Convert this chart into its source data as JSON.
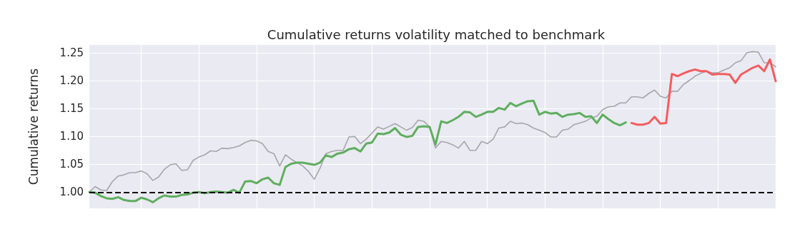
{
  "chart_data": {
    "type": "line",
    "title": "Cumulative returns volatility matched to benchmark",
    "ylabel": "Cumulative returns",
    "categories": [
      null,
      null,
      null,
      null,
      null,
      null,
      null,
      null,
      null,
      null,
      null,
      null,
      null,
      null,
      null,
      null,
      null,
      null,
      null,
      null,
      null,
      null,
      null,
      null,
      null,
      null,
      null,
      null,
      null,
      null,
      null,
      null,
      null,
      null,
      null,
      null,
      null,
      null,
      null,
      null,
      null,
      null,
      null,
      null,
      null,
      null,
      null,
      null,
      null,
      null,
      null,
      null,
      null,
      null,
      null,
      null,
      null,
      null,
      null,
      null,
      null,
      null,
      null,
      null,
      null,
      null,
      null,
      null,
      null,
      null,
      null,
      null,
      null,
      null,
      null,
      null,
      null,
      null,
      null,
      null,
      null,
      null,
      null,
      null,
      null,
      null,
      null,
      null,
      null,
      null,
      null,
      null,
      null,
      null,
      null,
      null,
      null,
      null,
      null,
      null,
      null,
      null,
      null,
      null,
      null,
      null,
      null,
      null,
      null,
      null,
      null,
      null,
      null,
      null,
      null,
      null,
      null,
      null,
      null,
      null
    ],
    "series": [
      {
        "color": "#a6a6ab",
        "values": [
          1.0,
          1.01,
          1.004,
          1.003,
          1.019,
          1.029,
          1.031,
          1.035,
          1.035,
          1.038,
          1.033,
          1.021,
          1.027,
          1.041,
          1.049,
          1.051,
          1.039,
          1.04,
          1.057,
          1.063,
          1.067,
          1.074,
          1.073,
          1.079,
          1.078,
          1.08,
          1.083,
          1.089,
          1.093,
          1.092,
          1.087,
          1.073,
          1.069,
          1.047,
          1.067,
          1.059,
          1.053,
          1.047,
          1.037,
          1.023,
          1.043,
          1.069,
          1.073,
          1.075,
          1.075,
          1.099,
          1.1,
          1.087,
          1.095,
          1.106,
          1.117,
          1.113,
          1.118,
          1.123,
          1.117,
          1.111,
          1.116,
          1.129,
          1.127,
          1.117,
          1.079,
          1.091,
          1.089,
          1.085,
          1.079,
          1.091,
          1.075,
          1.075,
          1.091,
          1.087,
          1.095,
          1.115,
          1.117,
          1.127,
          1.123,
          1.124,
          1.121,
          1.115,
          1.111,
          1.107,
          1.099,
          1.099,
          1.111,
          1.113,
          1.121,
          1.124,
          1.127,
          1.133,
          1.136,
          1.148,
          1.153,
          1.154,
          1.16,
          1.16,
          1.171,
          1.171,
          1.169,
          1.177,
          1.183,
          1.172,
          1.169,
          1.181,
          1.181,
          1.193,
          1.2,
          1.208,
          1.213,
          1.217,
          1.214,
          1.214,
          1.219,
          1.223,
          1.232,
          1.236,
          1.25,
          1.252,
          1.251,
          1.232,
          1.232,
          1.225
        ]
      },
      {
        "color": "#5fae5f",
        "values": [
          1.0,
          0.999,
          0.993,
          0.989,
          0.988,
          0.991,
          0.986,
          0.984,
          0.984,
          0.99,
          0.987,
          0.982,
          0.989,
          0.994,
          0.992,
          0.992,
          0.995,
          0.996,
          0.999,
          1.0,
          0.998,
          1.0,
          1.001,
          1.0,
          0.999,
          1.004,
          0.999,
          1.019,
          1.02,
          1.016,
          1.023,
          1.026,
          1.016,
          1.013,
          1.045,
          1.051,
          1.053,
          1.053,
          1.051,
          1.049,
          1.053,
          1.066,
          1.063,
          1.069,
          1.071,
          1.077,
          1.079,
          1.073,
          1.087,
          1.089,
          1.105,
          1.104,
          1.107,
          1.115,
          1.103,
          1.099,
          1.101,
          1.117,
          1.118,
          1.117,
          1.085,
          1.127,
          1.124,
          1.129,
          1.135,
          1.144,
          1.143,
          1.135,
          1.139,
          1.144,
          1.144,
          1.151,
          1.148,
          1.16,
          1.154,
          1.159,
          1.163,
          1.164,
          1.139,
          1.144,
          1.141,
          1.142,
          1.135,
          1.139,
          1.14,
          1.142,
          1.135,
          1.136,
          1.124,
          1.139,
          1.131,
          1.124,
          1.12,
          1.125,
          null,
          null,
          null,
          null,
          null,
          null,
          null,
          null,
          null,
          null,
          null,
          null,
          null,
          null,
          null,
          null,
          null,
          null,
          null,
          null,
          null,
          null,
          null,
          null,
          null,
          null
        ]
      },
      {
        "color": "#f45c5f",
        "values": [
          null,
          null,
          null,
          null,
          null,
          null,
          null,
          null,
          null,
          null,
          null,
          null,
          null,
          null,
          null,
          null,
          null,
          null,
          null,
          null,
          null,
          null,
          null,
          null,
          null,
          null,
          null,
          null,
          null,
          null,
          null,
          null,
          null,
          null,
          null,
          null,
          null,
          null,
          null,
          null,
          null,
          null,
          null,
          null,
          null,
          null,
          null,
          null,
          null,
          null,
          null,
          null,
          null,
          null,
          null,
          null,
          null,
          null,
          null,
          null,
          null,
          null,
          null,
          null,
          null,
          null,
          null,
          null,
          null,
          null,
          null,
          null,
          null,
          null,
          null,
          null,
          null,
          null,
          null,
          null,
          null,
          null,
          null,
          null,
          null,
          null,
          null,
          null,
          null,
          null,
          null,
          null,
          null,
          null,
          1.124,
          1.121,
          1.121,
          1.124,
          1.135,
          1.123,
          1.124,
          1.212,
          1.208,
          1.213,
          1.217,
          1.22,
          1.217,
          1.217,
          1.211,
          1.212,
          1.212,
          1.211,
          1.196,
          1.211,
          1.217,
          1.223,
          1.227,
          1.217,
          1.238,
          1.199
        ]
      }
    ],
    "ylim": [
      0.971,
      1.264
    ],
    "yticks": [
      {
        "value": 1,
        "label": "1.00"
      },
      {
        "value": 1.05,
        "label": "1.05"
      },
      {
        "value": 1.1,
        "label": "1.10"
      },
      {
        "value": 1.15,
        "label": "1.15"
      },
      {
        "value": 1.2,
        "label": "1.20"
      },
      {
        "value": 1.25,
        "label": "1.25"
      }
    ],
    "ref_lines": [
      {
        "axis": "y",
        "value": 1,
        "color": "#000000",
        "line_style": "dashed"
      }
    ],
    "grid": true,
    "tick_labels": "y",
    "line_style": "solid"
  }
}
